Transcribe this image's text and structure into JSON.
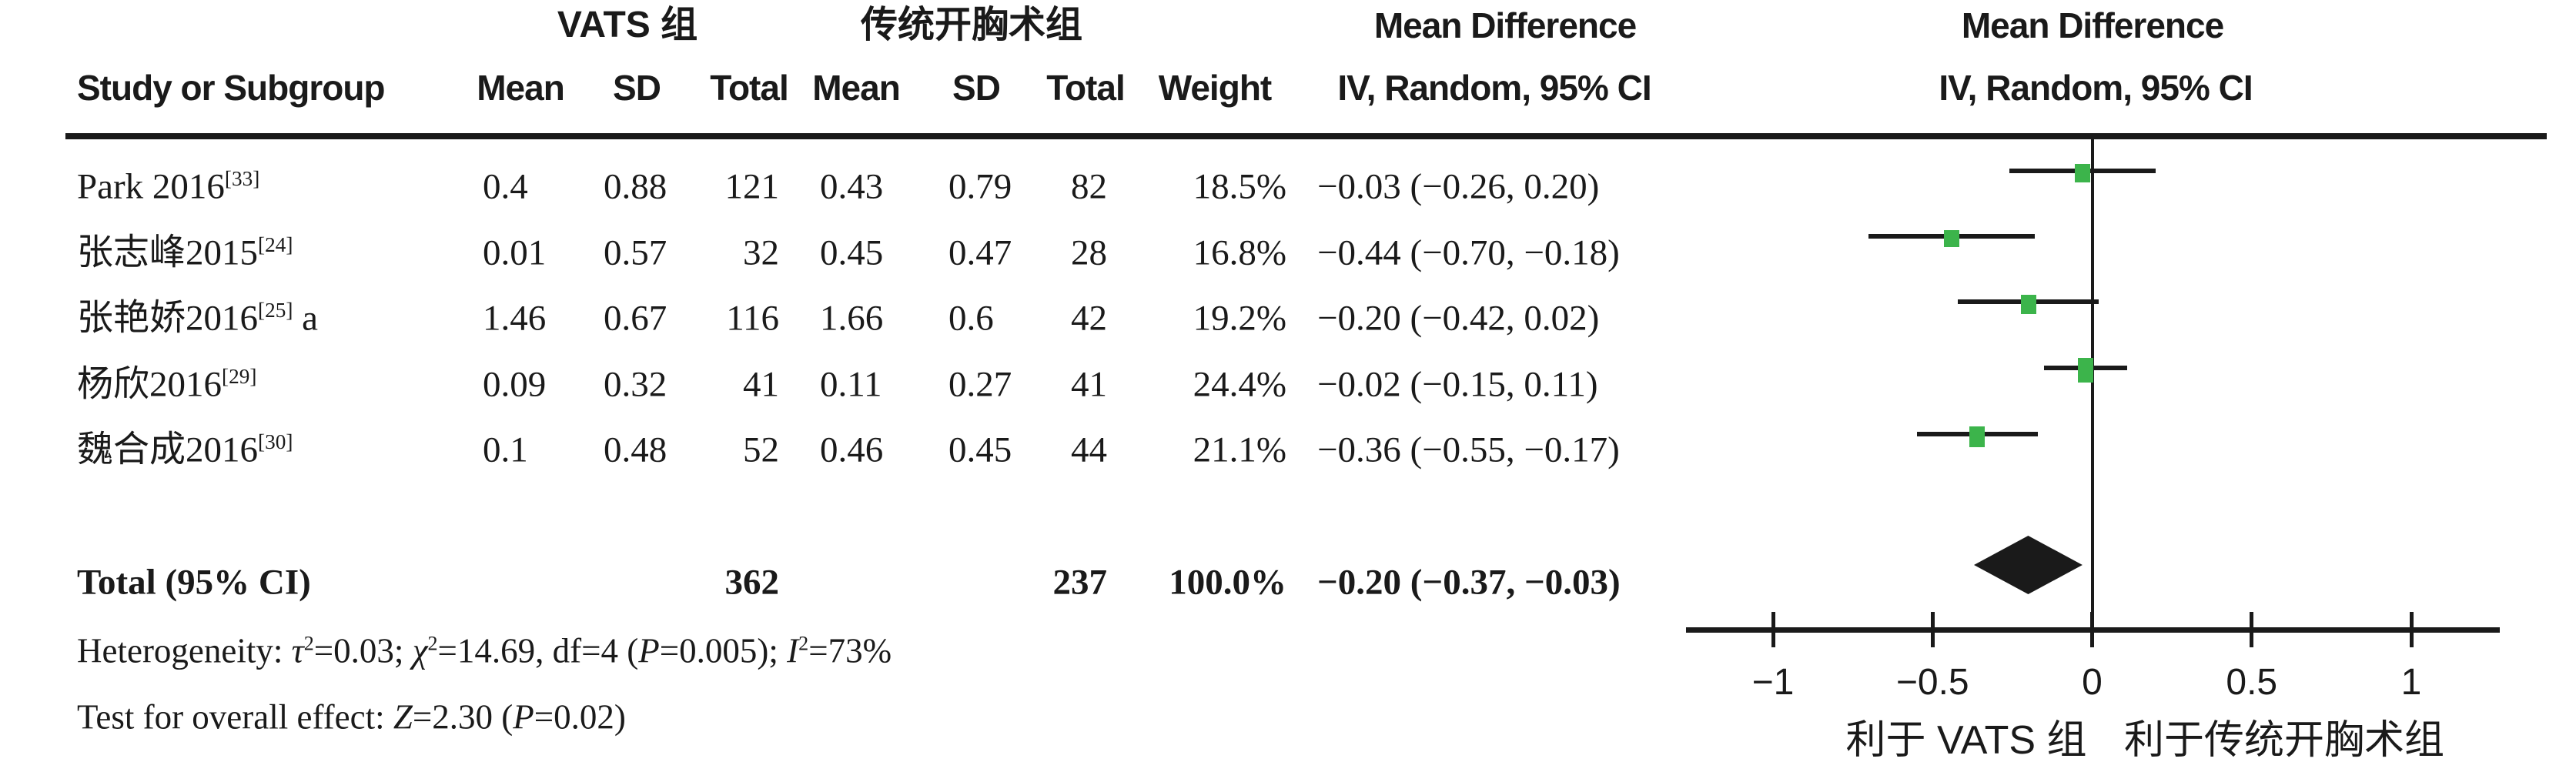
{
  "figure": {
    "headers": {
      "group1": "VATS 组",
      "group2": "传统开胸术组",
      "md_text": {
        "title": "Mean Difference",
        "subtitle": "IV, Random, 95% CI"
      },
      "md_plot": {
        "title": "Mean Difference",
        "subtitle": "IV, Random, 95% CI"
      },
      "study": "Study or Subgroup",
      "mean": "Mean",
      "sd": "SD",
      "total": "Total",
      "weight": "Weight"
    },
    "rows": [
      {
        "study": [
          {
            "t": "Park 2016"
          },
          {
            "t": "[33]",
            "sup": true
          }
        ],
        "mean1": "0.4",
        "sd1": "0.88",
        "total1": "121",
        "mean2": "0.43",
        "sd2": "0.79",
        "total2": "82",
        "weight": "18.5%",
        "ci": "−0.03 (−0.26, 0.20)"
      },
      {
        "study": [
          {
            "t": "张志峰2015"
          },
          {
            "t": "[24]",
            "sup": true
          }
        ],
        "mean1": "0.01",
        "sd1": "0.57",
        "total1": "32",
        "mean2": "0.45",
        "sd2": "0.47",
        "total2": "28",
        "weight": "16.8%",
        "ci": "−0.44 (−0.70, −0.18)"
      },
      {
        "study": [
          {
            "t": "张艳娇2016"
          },
          {
            "t": "[25]",
            "sup": true
          },
          {
            "t": " a"
          }
        ],
        "mean1": "1.46",
        "sd1": "0.67",
        "total1": "116",
        "mean2": "1.66",
        "sd2": "0.6",
        "total2": "42",
        "weight": "19.2%",
        "ci": "−0.20 (−0.42, 0.02)"
      },
      {
        "study": [
          {
            "t": "杨欣2016"
          },
          {
            "t": "[29]",
            "sup": true
          }
        ],
        "mean1": "0.09",
        "sd1": "0.32",
        "total1": "41",
        "mean2": "0.11",
        "sd2": "0.27",
        "total2": "41",
        "weight": "24.4%",
        "ci": "−0.02 (−0.15, 0.11)"
      },
      {
        "study": [
          {
            "t": "魏合成2016"
          },
          {
            "t": "[30]",
            "sup": true
          }
        ],
        "mean1": "0.1",
        "sd1": "0.48",
        "total1": "52",
        "mean2": "0.46",
        "sd2": "0.45",
        "total2": "44",
        "weight": "21.1%",
        "ci": "−0.36 (−0.55, −0.17)"
      }
    ],
    "total_row": {
      "label": "Total (95% CI)",
      "total1": "362",
      "total2": "237",
      "weight": "100.0%",
      "ci": "−0.20 (−0.37, −0.03)"
    },
    "heterogeneity": [
      {
        "t": "Heterogeneity: "
      },
      {
        "t": "τ",
        "i": true
      },
      {
        "t": "2",
        "sup": true
      },
      {
        "t": "=0.03; "
      },
      {
        "t": "χ",
        "i": true
      },
      {
        "t": "2",
        "sup": true
      },
      {
        "t": "=14.69, df=4 ("
      },
      {
        "t": "P",
        "i": true
      },
      {
        "t": "=0.005); "
      },
      {
        "t": "I",
        "i": true
      },
      {
        "t": "2",
        "sup": true
      },
      {
        "t": "=73%"
      }
    ],
    "overall_effect": [
      {
        "t": "Test for overall effect: "
      },
      {
        "t": "Z",
        "i": true
      },
      {
        "t": "=2.30 ("
      },
      {
        "t": "P",
        "i": true
      },
      {
        "t": "=0.02)"
      }
    ],
    "axis": {
      "tick_labels": [
        "−1",
        "−0.5",
        "0",
        "0.5",
        "1"
      ],
      "favours_left": "利于 VATS 组",
      "favours_right": "利于传统开胸术组"
    },
    "marker_color": "#3cb44b",
    "line_color": "#1a1a1a"
  },
  "chart_data": {
    "type": "scatter",
    "subtype": "forest-plot",
    "title": "Mean Difference",
    "xlabel": "IV, Random, 95% CI",
    "xlabel_left": "利于 VATS 组",
    "xlabel_right": "利于传统开胸术组",
    "xlim": [
      -1.27,
      1.28
    ],
    "xticks": [
      -1,
      -0.5,
      0,
      0.5,
      1
    ],
    "grid": false,
    "series": [
      {
        "name": "Park 2016[33]",
        "estimate": -0.03,
        "ci": [
          -0.26,
          0.2
        ],
        "weight_pct": 18.5
      },
      {
        "name": "张志峰2015[24]",
        "estimate": -0.44,
        "ci": [
          -0.7,
          -0.18
        ],
        "weight_pct": 16.8
      },
      {
        "name": "张艳娇2016[25] a",
        "estimate": -0.2,
        "ci": [
          -0.42,
          0.02
        ],
        "weight_pct": 19.2
      },
      {
        "name": "杨欣2016[29]",
        "estimate": -0.02,
        "ci": [
          -0.15,
          0.11
        ],
        "weight_pct": 24.4
      },
      {
        "name": "魏合成2016[30]",
        "estimate": -0.36,
        "ci": [
          -0.55,
          -0.17
        ],
        "weight_pct": 21.1
      }
    ],
    "total": {
      "name": "Total (95% CI)",
      "estimate": -0.2,
      "ci": [
        -0.37,
        -0.03
      ],
      "weight_pct": 100.0
    }
  }
}
